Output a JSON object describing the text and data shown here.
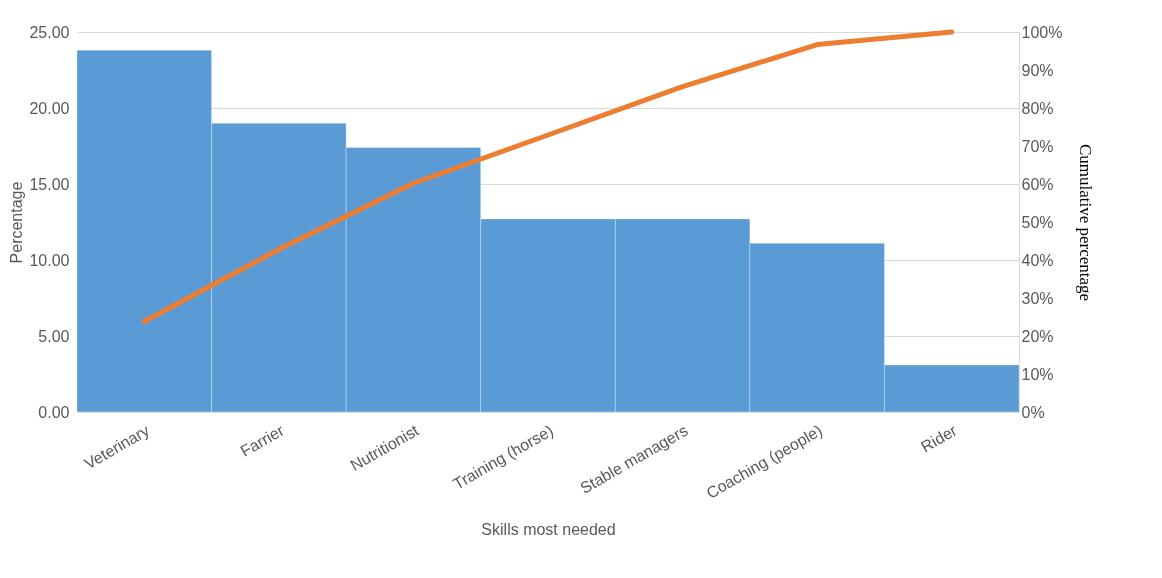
{
  "chart_data": {
    "type": "bar",
    "xlabel": "Skills most needed",
    "ylabel": "Percentage",
    "y2label": "Cumulative percentage",
    "categories": [
      "Veterinary",
      "Farrier",
      "Nutritionist",
      "Training (horse)",
      "Stable managers",
      "Coaching (people)",
      "Rider"
    ],
    "series": [
      {
        "color": "#5b9bd5",
        "values": [
          23.8,
          19.0,
          17.4,
          12.7,
          12.7,
          11.1,
          3.1
        ]
      },
      {
        "type": "line",
        "axis": "y2",
        "color": "#ed7d31",
        "values": [
          23.8,
          42.8,
          60.2,
          72.9,
          85.6,
          96.7,
          100
        ]
      }
    ],
    "ylim": [
      0,
      25
    ],
    "yticks": [
      {
        "value": 0,
        "label": "0.00"
      },
      {
        "value": 5,
        "label": "5.00"
      },
      {
        "value": 10,
        "label": "10.00"
      },
      {
        "value": 15,
        "label": "15.00"
      },
      {
        "value": 20,
        "label": "20.00"
      },
      {
        "value": 25,
        "label": "25.00"
      }
    ],
    "y2lim": [
      0,
      100
    ],
    "y2ticks": [
      {
        "value": 0,
        "label": "0%"
      },
      {
        "value": 10,
        "label": "10%"
      },
      {
        "value": 20,
        "label": "20%"
      },
      {
        "value": 30,
        "label": "30%"
      },
      {
        "value": 40,
        "label": "40%"
      },
      {
        "value": 50,
        "label": "50%"
      },
      {
        "value": 60,
        "label": "60%"
      },
      {
        "value": 70,
        "label": "70%"
      },
      {
        "value": 80,
        "label": "80%"
      },
      {
        "value": 90,
        "label": "90%"
      },
      {
        "value": 100,
        "label": "100%"
      }
    ],
    "grid": "y"
  }
}
